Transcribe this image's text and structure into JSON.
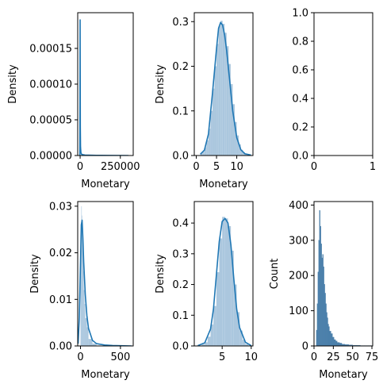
{
  "colors": {
    "fill": "#a6c4dc",
    "line": "#1f77b4",
    "bar": "#4a7faa",
    "axis": "#000000"
  },
  "chart_data": [
    {
      "type": "area",
      "xlabel": "Monetary",
      "ylabel": "Density",
      "xlim": [
        -15000,
        330000
      ],
      "ylim": [
        0,
        0.0002
      ],
      "xticks": [
        {
          "v": 0,
          "label": "0"
        },
        {
          "v": 250000,
          "label": "250000"
        }
      ],
      "yticks": [
        {
          "v": 0,
          "label": "0.00000"
        },
        {
          "v": 5e-05,
          "label": "0.00005"
        },
        {
          "v": 0.0001,
          "label": "0.00010"
        },
        {
          "v": 0.00015,
          "label": "0.00015"
        }
      ],
      "kde": {
        "x": [
          -1500,
          -600,
          0,
          600,
          1200,
          2500,
          5000,
          10000,
          30000,
          100000,
          200000,
          300000
        ],
        "y": [
          0,
          8e-05,
          0.00019,
          0.00012,
          4e-05,
          1.2e-05,
          4e-06,
          1.5e-06,
          6e-07,
          2e-07,
          1e-07,
          0
        ]
      },
      "bars": {
        "edges": [
          -3000,
          2000
        ],
        "heights": [
          0.00019
        ]
      }
    },
    {
      "type": "area",
      "xlabel": "Monetary",
      "ylabel": "Density",
      "xlim": [
        -0.5,
        14
      ],
      "ylim": [
        0,
        0.32
      ],
      "xticks": [
        {
          "v": 0,
          "label": "0"
        },
        {
          "v": 5,
          "label": "5"
        },
        {
          "v": 10,
          "label": "10"
        }
      ],
      "yticks": [
        {
          "v": 0,
          "label": "0.0"
        },
        {
          "v": 0.1,
          "label": "0.1"
        },
        {
          "v": 0.2,
          "label": "0.2"
        },
        {
          "v": 0.3,
          "label": "0.3"
        }
      ],
      "kde": {
        "x": [
          1.0,
          2,
          3,
          4,
          5,
          5.5,
          6,
          6.5,
          7,
          7.5,
          8,
          9,
          10,
          11,
          12,
          13.5
        ],
        "y": [
          0.003,
          0.012,
          0.048,
          0.14,
          0.24,
          0.285,
          0.298,
          0.292,
          0.27,
          0.235,
          0.19,
          0.1,
          0.04,
          0.013,
          0.004,
          0.001
        ]
      },
      "bars": {
        "edges": [
          1.0,
          1.5,
          2,
          2.5,
          3,
          3.5,
          4,
          4.5,
          5,
          5.5,
          6,
          6.5,
          7,
          7.5,
          8,
          8.5,
          9,
          9.5,
          10,
          10.5,
          11,
          11.5,
          12,
          12.5,
          13,
          13.5
        ],
        "heights": [
          0.005,
          0.008,
          0.018,
          0.034,
          0.06,
          0.1,
          0.15,
          0.2,
          0.25,
          0.29,
          0.302,
          0.295,
          0.275,
          0.245,
          0.205,
          0.16,
          0.115,
          0.075,
          0.045,
          0.025,
          0.013,
          0.007,
          0.003,
          0.002,
          0.001
        ]
      }
    },
    {
      "type": "empty",
      "xlabel": "",
      "ylabel": "",
      "xlim": [
        0,
        1
      ],
      "ylim": [
        0,
        1
      ],
      "xticks": [
        {
          "v": 0,
          "label": "0"
        },
        {
          "v": 1,
          "label": "1"
        }
      ],
      "yticks": [
        {
          "v": 0,
          "label": "0.0"
        },
        {
          "v": 0.2,
          "label": "0.2"
        },
        {
          "v": 0.4,
          "label": "0.4"
        },
        {
          "v": 0.6,
          "label": "0.6"
        },
        {
          "v": 0.8,
          "label": "0.8"
        },
        {
          "v": 1.0,
          "label": "1.0"
        }
      ]
    },
    {
      "type": "area",
      "xlabel": "Monetary",
      "ylabel": "Density",
      "xlim": [
        -35,
        660
      ],
      "ylim": [
        0,
        0.031
      ],
      "xticks": [
        {
          "v": 0,
          "label": "0"
        },
        {
          "v": 500,
          "label": "500"
        }
      ],
      "yticks": [
        {
          "v": 0,
          "label": "0.00"
        },
        {
          "v": 0.01,
          "label": "0.01"
        },
        {
          "v": 0.02,
          "label": "0.02"
        },
        {
          "v": 0.03,
          "label": "0.03"
        }
      ],
      "kde": {
        "x": [
          -30,
          -15,
          0,
          10,
          20,
          30,
          40,
          60,
          80,
          100,
          150,
          200,
          300,
          400,
          500,
          640
        ],
        "y": [
          0.0005,
          0.006,
          0.018,
          0.026,
          0.027,
          0.023,
          0.018,
          0.011,
          0.0065,
          0.0038,
          0.0012,
          0.0005,
          0.0002,
          0.0001,
          5e-05,
          0
        ]
      },
      "bars": {
        "edges": [
          0,
          5,
          10,
          15,
          20,
          25,
          30,
          35,
          40,
          50,
          60,
          80,
          100,
          150,
          200
        ],
        "heights": [
          0.015,
          0.025,
          0.03,
          0.028,
          0.025,
          0.022,
          0.019,
          0.016,
          0.012,
          0.009,
          0.006,
          0.004,
          0.0015,
          0.0005
        ]
      }
    },
    {
      "type": "area",
      "xlabel": "",
      "ylabel": "Density",
      "xlim": [
        0.2,
        10.3
      ],
      "ylim": [
        0,
        0.47
      ],
      "xticks": [
        {
          "v": 5,
          "label": "5"
        },
        {
          "v": 10,
          "label": "10"
        }
      ],
      "yticks": [
        {
          "v": 0,
          "label": "0.0"
        },
        {
          "v": 0.1,
          "label": "0.1"
        },
        {
          "v": 0.2,
          "label": "0.2"
        },
        {
          "v": 0.3,
          "label": "0.3"
        },
        {
          "v": 0.4,
          "label": "0.4"
        }
      ],
      "kde": {
        "x": [
          0.8,
          2,
          3,
          3.5,
          4,
          4.5,
          5,
          5.5,
          6,
          6.5,
          7,
          7.5,
          8,
          9,
          10
        ],
        "y": [
          0.001,
          0.01,
          0.055,
          0.12,
          0.23,
          0.34,
          0.405,
          0.415,
          0.4,
          0.33,
          0.22,
          0.12,
          0.06,
          0.012,
          0.001
        ]
      },
      "bars": {
        "edges": [
          1.5,
          2,
          2.5,
          3,
          3.5,
          4,
          4.5,
          5,
          5.5,
          6,
          6.5,
          7,
          7.5,
          8,
          8.5,
          9,
          9.5
        ],
        "heights": [
          0.005,
          0.012,
          0.03,
          0.07,
          0.13,
          0.24,
          0.35,
          0.42,
          0.415,
          0.39,
          0.31,
          0.2,
          0.11,
          0.05,
          0.02,
          0.006
        ]
      }
    },
    {
      "type": "bar",
      "xlabel": "Monetary",
      "ylabel": "Count",
      "xlim": [
        0,
        76
      ],
      "ylim": [
        0,
        410
      ],
      "xticks": [
        {
          "v": 0,
          "label": "0"
        },
        {
          "v": 25,
          "label": "25"
        },
        {
          "v": 50,
          "label": "50"
        },
        {
          "v": 75,
          "label": "75"
        }
      ],
      "yticks": [
        {
          "v": 0,
          "label": "0"
        },
        {
          "v": 100,
          "label": "100"
        },
        {
          "v": 200,
          "label": "200"
        },
        {
          "v": 300,
          "label": "300"
        },
        {
          "v": 400,
          "label": "400"
        }
      ],
      "bars": {
        "edges": [
          3,
          4,
          5,
          6,
          7,
          8,
          9,
          10,
          11,
          12,
          13,
          14,
          15,
          16,
          17,
          18,
          19,
          20,
          22,
          24,
          26,
          28,
          30,
          33,
          36,
          40,
          45,
          50,
          55,
          60,
          65,
          70,
          75
        ],
        "heights": [
          45,
          120,
          210,
          300,
          385,
          340,
          290,
          250,
          260,
          225,
          175,
          150,
          120,
          95,
          80,
          62,
          55,
          42,
          35,
          25,
          18,
          14,
          10,
          8,
          5,
          4,
          3,
          2,
          2,
          1,
          1,
          1
        ]
      }
    }
  ]
}
